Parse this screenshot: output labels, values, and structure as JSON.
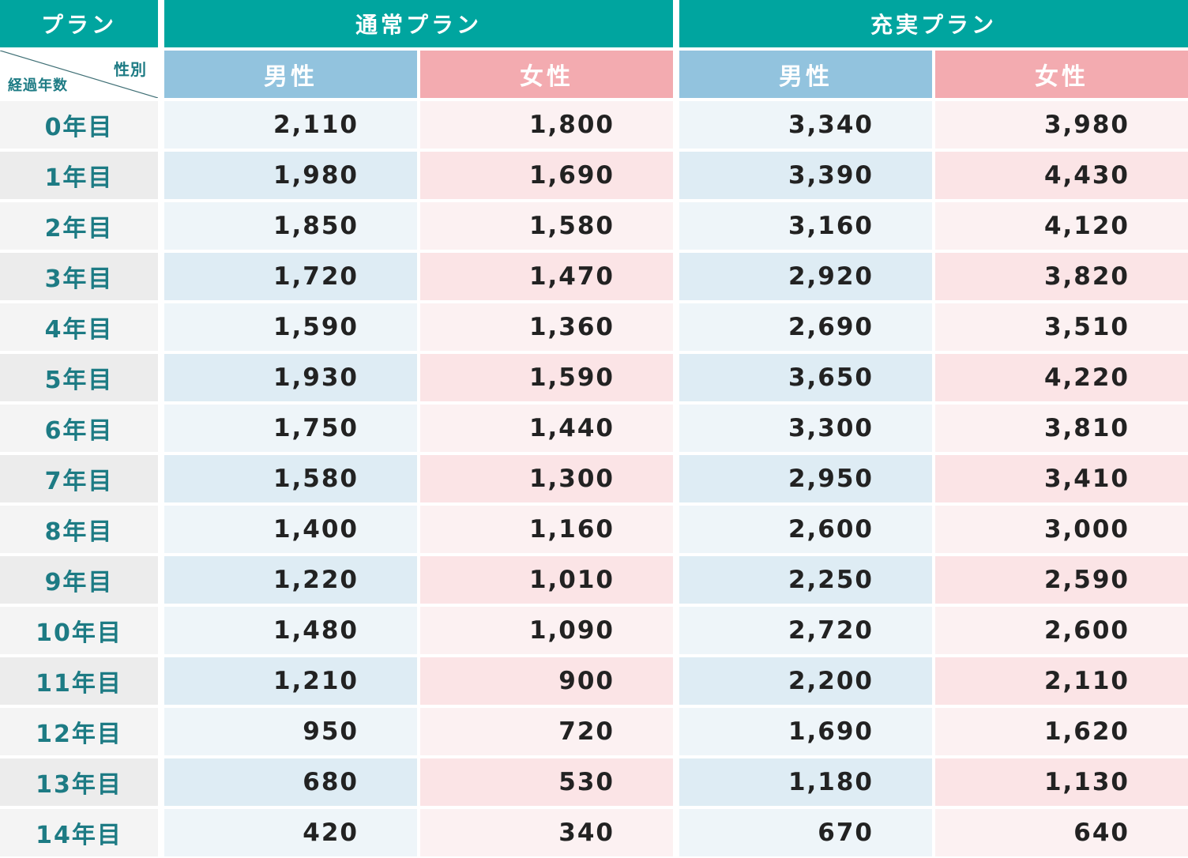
{
  "header": {
    "plan_label": "プラン",
    "plans": [
      {
        "name": "通常プラン",
        "genders": [
          "男性",
          "女性"
        ]
      },
      {
        "name": "充実プラン",
        "genders": [
          "男性",
          "女性"
        ]
      }
    ],
    "corner": {
      "gender_label": "性別",
      "years_label": "経過年数"
    }
  },
  "colors": {
    "plan_header": "#00a59f",
    "male_header": "#92c3de",
    "female_header": "#f3abb0",
    "year_text": "#1d7b84"
  },
  "rows": [
    {
      "year": "0年目",
      "standard_male": "2,110",
      "standard_female": "1,800",
      "premium_male": "3,340",
      "premium_female": "3,980"
    },
    {
      "year": "1年目",
      "standard_male": "1,980",
      "standard_female": "1,690",
      "premium_male": "3,390",
      "premium_female": "4,430"
    },
    {
      "year": "2年目",
      "standard_male": "1,850",
      "standard_female": "1,580",
      "premium_male": "3,160",
      "premium_female": "4,120"
    },
    {
      "year": "3年目",
      "standard_male": "1,720",
      "standard_female": "1,470",
      "premium_male": "2,920",
      "premium_female": "3,820"
    },
    {
      "year": "4年目",
      "standard_male": "1,590",
      "standard_female": "1,360",
      "premium_male": "2,690",
      "premium_female": "3,510"
    },
    {
      "year": "5年目",
      "standard_male": "1,930",
      "standard_female": "1,590",
      "premium_male": "3,650",
      "premium_female": "4,220"
    },
    {
      "year": "6年目",
      "standard_male": "1,750",
      "standard_female": "1,440",
      "premium_male": "3,300",
      "premium_female": "3,810"
    },
    {
      "year": "7年目",
      "standard_male": "1,580",
      "standard_female": "1,300",
      "premium_male": "2,950",
      "premium_female": "3,410"
    },
    {
      "year": "8年目",
      "standard_male": "1,400",
      "standard_female": "1,160",
      "premium_male": "2,600",
      "premium_female": "3,000"
    },
    {
      "year": "9年目",
      "standard_male": "1,220",
      "standard_female": "1,010",
      "premium_male": "2,250",
      "premium_female": "2,590"
    },
    {
      "year": "10年目",
      "standard_male": "1,480",
      "standard_female": "1,090",
      "premium_male": "2,720",
      "premium_female": "2,600"
    },
    {
      "year": "11年目",
      "standard_male": "1,210",
      "standard_female": "900",
      "premium_male": "2,200",
      "premium_female": "2,110"
    },
    {
      "year": "12年目",
      "standard_male": "950",
      "standard_female": "720",
      "premium_male": "1,690",
      "premium_female": "1,620"
    },
    {
      "year": "13年目",
      "standard_male": "680",
      "standard_female": "530",
      "premium_male": "1,180",
      "premium_female": "1,130"
    },
    {
      "year": "14年目",
      "standard_male": "420",
      "standard_female": "340",
      "premium_male": "670",
      "premium_female": "640"
    }
  ]
}
